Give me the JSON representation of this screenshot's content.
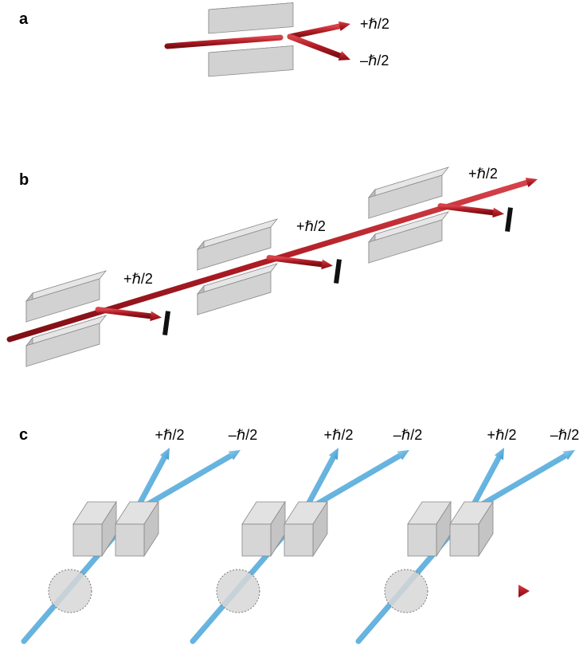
{
  "panels": [
    {
      "label": "a",
      "beam_labels": [
        "+ℏ/2",
        "–ℏ/2"
      ]
    },
    {
      "label": "b",
      "beam_labels": [
        "+ℏ/2",
        "+ℏ/2",
        "+ℏ/2"
      ]
    },
    {
      "label": "c",
      "beam_labels": [
        "+ℏ/2",
        "–ℏ/2",
        "+ℏ/2",
        "–ℏ/2",
        "+ℏ/2",
        "–ℏ/2"
      ]
    }
  ]
}
